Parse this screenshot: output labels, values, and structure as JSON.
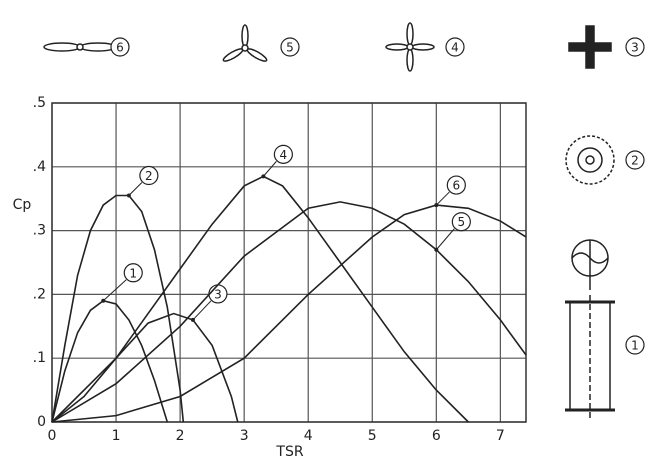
{
  "chart_data": {
    "type": "line",
    "x_label": "TSR",
    "y_label": "Cp",
    "xlim": [
      0,
      7.4
    ],
    "ylim": [
      0,
      0.5
    ],
    "xticks": [
      0,
      1,
      2,
      3,
      4,
      5,
      6,
      7
    ],
    "yticks": [
      0,
      {
        "value": 0.1,
        "label": ".1"
      },
      {
        "value": 0.2,
        "label": ".2"
      },
      {
        "value": 0.3,
        "label": ".3"
      },
      {
        "value": 0.4,
        "label": ".4"
      },
      {
        "value": 0.5,
        "label": ".5"
      }
    ],
    "grid": true,
    "series": [
      {
        "name": "1",
        "color": "#222222",
        "x": [
          0,
          0.2,
          0.4,
          0.6,
          0.8,
          1.0,
          1.2,
          1.4,
          1.6,
          1.8
        ],
        "values": [
          0,
          0.08,
          0.14,
          0.175,
          0.19,
          0.185,
          0.16,
          0.12,
          0.065,
          0
        ]
      },
      {
        "name": "2",
        "color": "#222222",
        "x": [
          0,
          0.2,
          0.4,
          0.6,
          0.8,
          1.0,
          1.2,
          1.4,
          1.6,
          1.8,
          2.0,
          2.05
        ],
        "values": [
          0,
          0.12,
          0.23,
          0.3,
          0.34,
          0.355,
          0.355,
          0.33,
          0.27,
          0.18,
          0.05,
          0
        ]
      },
      {
        "name": "3",
        "color": "#222222",
        "x": [
          0,
          0.5,
          1.0,
          1.5,
          1.9,
          2.2,
          2.5,
          2.8,
          2.9
        ],
        "values": [
          0,
          0.04,
          0.1,
          0.155,
          0.17,
          0.16,
          0.12,
          0.04,
          0
        ]
      },
      {
        "name": "4",
        "color": "#222222",
        "x": [
          0,
          1,
          2,
          2.5,
          3,
          3.3,
          3.6,
          4,
          4.5,
          5,
          5.5,
          6,
          6.5
        ],
        "values": [
          0,
          0.1,
          0.24,
          0.31,
          0.37,
          0.385,
          0.37,
          0.32,
          0.25,
          0.18,
          0.11,
          0.05,
          0
        ]
      },
      {
        "name": "5",
        "color": "#222222",
        "x": [
          0,
          1,
          2,
          3,
          4,
          4.5,
          5,
          5.5,
          6,
          6.5,
          7,
          7.4
        ],
        "values": [
          0,
          0.06,
          0.15,
          0.26,
          0.335,
          0.345,
          0.335,
          0.31,
          0.27,
          0.22,
          0.16,
          0.105
        ]
      },
      {
        "name": "6",
        "color": "#222222",
        "x": [
          0,
          1,
          2,
          3,
          4,
          5,
          5.5,
          6,
          6.5,
          7,
          7.4
        ],
        "values": [
          0,
          0.01,
          0.04,
          0.1,
          0.2,
          0.29,
          0.325,
          0.34,
          0.335,
          0.315,
          0.29
        ]
      }
    ]
  }
}
